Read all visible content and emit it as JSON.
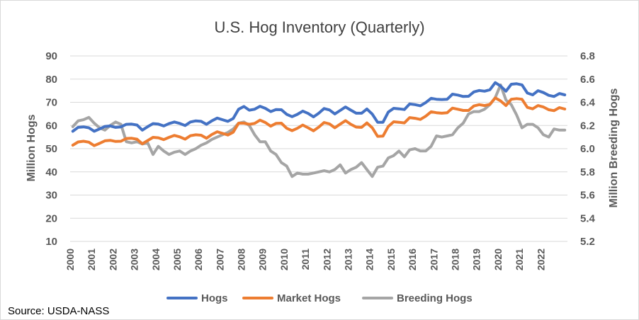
{
  "chart_data": {
    "type": "line",
    "title": "U.S. Hog Inventory (Quarterly)",
    "ylabel": "Million Hogs",
    "y2label": "Million Breeding Hogs",
    "source": "Source: USDA-NASS",
    "ylim": [
      10,
      90
    ],
    "yticks": [
      10,
      20,
      30,
      40,
      50,
      60,
      70,
      80,
      90
    ],
    "y2lim": [
      5.2,
      6.8
    ],
    "y2ticks": [
      "5.2",
      "5.4",
      "5.6",
      "5.8",
      "6.0",
      "6.2",
      "6.4",
      "6.6",
      "6.8"
    ],
    "x_start": 2000,
    "x_labels": [
      "2000",
      "2001",
      "2002",
      "2003",
      "2004",
      "2005",
      "2006",
      "2007",
      "2008",
      "2009",
      "2010",
      "2011",
      "2012",
      "2013",
      "2014",
      "2015",
      "2016",
      "2017",
      "2018",
      "2019",
      "2020",
      "2021",
      "2022"
    ],
    "grid": true,
    "legend_position": "bottom",
    "colors": {
      "hogs": "#4472c4",
      "market": "#ed7d31",
      "breeding": "#a5a5a5",
      "grid": "#d9d9d9"
    },
    "series": [
      {
        "name": "Hogs",
        "axis": "left",
        "values": [
          57.5,
          59.2,
          59.4,
          59.0,
          57.5,
          58.5,
          59.6,
          59.8,
          59.2,
          59.4,
          60.5,
          60.6,
          60.2,
          58.0,
          59.5,
          60.8,
          60.6,
          59.8,
          60.8,
          61.5,
          60.9,
          60.0,
          61.5,
          62.0,
          61.8,
          60.5,
          62.0,
          63.2,
          62.5,
          61.8,
          63.0,
          67.0,
          68.2,
          66.6,
          67.0,
          68.3,
          67.4,
          66.0,
          66.9,
          66.8,
          64.8,
          63.8,
          64.8,
          66.2,
          65.2,
          63.7,
          65.3,
          67.3,
          66.7,
          65.0,
          66.5,
          68.0,
          66.6,
          65.3,
          65.3,
          67.1,
          64.9,
          61.4,
          61.4,
          65.8,
          67.4,
          67.2,
          66.9,
          69.3,
          69.0,
          68.5,
          69.9,
          71.7,
          71.3,
          71.2,
          71.3,
          73.5,
          73.1,
          72.5,
          72.6,
          74.5,
          75.1,
          74.8,
          75.4,
          78.5,
          77.0,
          74.8,
          77.8,
          78.0,
          77.5,
          74.0,
          73.2,
          75.0,
          74.2,
          73.0,
          72.5,
          73.8,
          73.2
        ]
      },
      {
        "name": "Market Hogs",
        "axis": "left",
        "values": [
          51.5,
          52.9,
          53.2,
          52.8,
          51.3,
          52.3,
          53.4,
          53.6,
          53.1,
          53.2,
          54.4,
          54.5,
          54.1,
          52.1,
          53.5,
          54.9,
          54.7,
          53.9,
          54.9,
          55.7,
          55.1,
          54.1,
          55.6,
          56.0,
          55.8,
          54.5,
          56.1,
          57.3,
          56.6,
          55.9,
          57.1,
          61.0,
          61.0,
          60.5,
          60.9,
          62.3,
          61.3,
          59.7,
          60.9,
          61.0,
          58.8,
          57.8,
          58.8,
          60.2,
          59.0,
          57.7,
          59.3,
          61.3,
          60.7,
          59.0,
          60.6,
          62.1,
          60.5,
          59.3,
          59.2,
          61.1,
          59.0,
          55.3,
          55.4,
          59.6,
          61.6,
          61.4,
          61.1,
          63.4,
          63.1,
          62.6,
          64.0,
          65.9,
          65.5,
          65.3,
          65.5,
          67.5,
          67.0,
          66.5,
          66.5,
          68.4,
          69.0,
          68.6,
          69.1,
          71.9,
          70.6,
          68.6,
          71.3,
          71.6,
          71.3,
          67.8,
          67.2,
          68.6,
          68.0,
          66.8,
          66.4,
          67.7,
          67.1
        ]
      },
      {
        "name": "Breeding Hogs",
        "axis": "right",
        "values": [
          6.19,
          6.24,
          6.25,
          6.27,
          6.22,
          6.18,
          6.16,
          6.2,
          6.23,
          6.21,
          6.06,
          6.05,
          6.06,
          6.04,
          6.05,
          5.95,
          6.02,
          5.98,
          5.95,
          5.97,
          5.98,
          5.95,
          5.98,
          6.0,
          6.03,
          6.05,
          6.08,
          6.1,
          6.12,
          6.14,
          6.17,
          6.22,
          6.23,
          6.2,
          6.12,
          6.06,
          6.06,
          5.98,
          5.95,
          5.88,
          5.85,
          5.76,
          5.79,
          5.78,
          5.78,
          5.79,
          5.8,
          5.81,
          5.8,
          5.82,
          5.86,
          5.79,
          5.82,
          5.84,
          5.88,
          5.82,
          5.76,
          5.84,
          5.85,
          5.92,
          5.94,
          5.98,
          5.93,
          5.99,
          6.0,
          5.98,
          5.98,
          6.02,
          6.11,
          6.1,
          6.11,
          6.12,
          6.18,
          6.22,
          6.3,
          6.32,
          6.32,
          6.34,
          6.38,
          6.44,
          6.55,
          6.42,
          6.38,
          6.29,
          6.18,
          6.21,
          6.21,
          6.18,
          6.12,
          6.1,
          6.17,
          6.16,
          6.16
        ]
      }
    ]
  }
}
